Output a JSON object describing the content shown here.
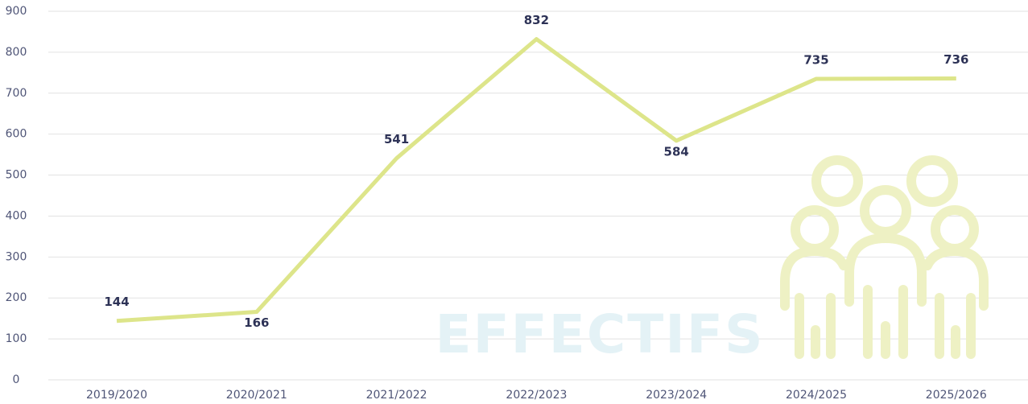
{
  "chart_data": {
    "type": "line",
    "categories": [
      "2019/2020",
      "2020/2021",
      "2021/2022",
      "2022/2023",
      "2023/2024",
      "2024/2025",
      "2025/2026"
    ],
    "values": [
      144,
      166,
      541,
      832,
      584,
      735,
      736
    ],
    "color": "#dde58a",
    "ylim": [
      0,
      900
    ],
    "yticks": [
      0,
      100,
      200,
      300,
      400,
      500,
      600,
      700,
      800,
      900
    ],
    "grid": true,
    "annotations": [
      "EFFECTIFS"
    ]
  }
}
